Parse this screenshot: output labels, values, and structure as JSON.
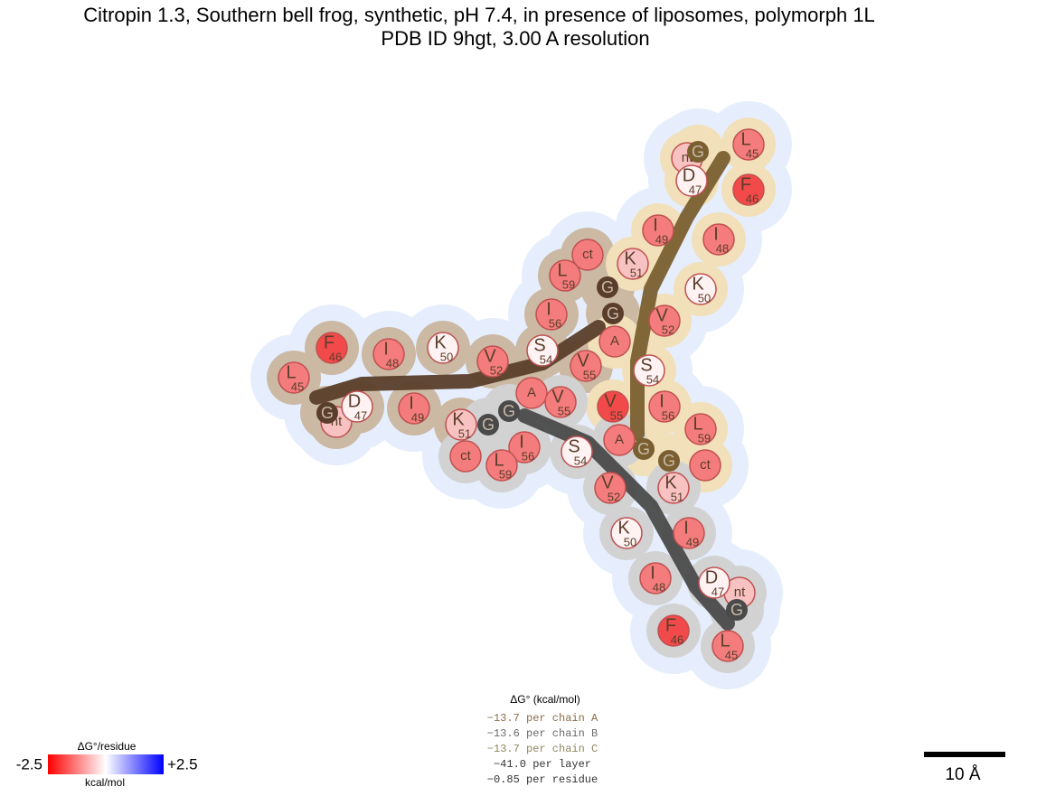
{
  "header": {
    "title": "Citropin 1.3, Southern bell frog, synthetic, pH 7.4, in presence of liposomes, polymorph 1L",
    "subtitle": "PDB ID 9hgt, 3.00 A resolution"
  },
  "chains": [
    {
      "residues": [
        {
          "letter": "nt"
        },
        {
          "letter": "G"
        },
        {
          "letter": "L",
          "number": 45
        },
        {
          "letter": "F",
          "number": 46
        },
        {
          "letter": "D",
          "number": 47
        },
        {
          "letter": "I",
          "number": 48
        },
        {
          "letter": "I",
          "number": 49
        },
        {
          "letter": "K",
          "number": 50
        },
        {
          "letter": "K",
          "number": 51
        },
        {
          "letter": "V",
          "number": 52
        },
        {
          "letter": "A"
        },
        {
          "letter": "S",
          "number": 54
        },
        {
          "letter": "V",
          "number": 55
        },
        {
          "letter": "I",
          "number": 56
        },
        {
          "letter": "G"
        },
        {
          "letter": "G"
        },
        {
          "letter": "L",
          "number": 59
        },
        {
          "letter": "ct"
        }
      ]
    },
    {
      "residues": [
        {
          "letter": "nt"
        },
        {
          "letter": "G"
        },
        {
          "letter": "L",
          "number": 45
        },
        {
          "letter": "F",
          "number": 46
        },
        {
          "letter": "D",
          "number": 47
        },
        {
          "letter": "I",
          "number": 48
        },
        {
          "letter": "I",
          "number": 49
        },
        {
          "letter": "K",
          "number": 50
        },
        {
          "letter": "K",
          "number": 51
        },
        {
          "letter": "V",
          "number": 52
        },
        {
          "letter": "A"
        },
        {
          "letter": "S",
          "number": 54
        },
        {
          "letter": "V",
          "number": 55
        },
        {
          "letter": "I",
          "number": 56
        },
        {
          "letter": "G"
        },
        {
          "letter": "G"
        },
        {
          "letter": "L",
          "number": 59
        },
        {
          "letter": "ct"
        }
      ]
    },
    {
      "residues": [
        {
          "letter": "nt"
        },
        {
          "letter": "G"
        },
        {
          "letter": "L",
          "number": 45
        },
        {
          "letter": "F",
          "number": 46
        },
        {
          "letter": "D",
          "number": 47
        },
        {
          "letter": "I",
          "number": 48
        },
        {
          "letter": "I",
          "number": 49
        },
        {
          "letter": "K",
          "number": 50
        },
        {
          "letter": "K",
          "number": 51
        },
        {
          "letter": "V",
          "number": 52
        },
        {
          "letter": "A"
        },
        {
          "letter": "S",
          "number": 54
        },
        {
          "letter": "V",
          "number": 55
        },
        {
          "letter": "I",
          "number": 56
        },
        {
          "letter": "G"
        },
        {
          "letter": "G"
        },
        {
          "letter": "L",
          "number": 59
        },
        {
          "letter": "ct"
        }
      ]
    }
  ],
  "energy": {
    "heading": "ΔG° (kcal/mol)",
    "lines": [
      "−13.7 per chain A",
      "−13.6 per chain B",
      "−13.7 per chain C",
      "−41.0 per layer",
      "−0.85 per residue"
    ]
  },
  "colorbar": {
    "title": "ΔG°/residue",
    "min": -2.5,
    "max": {
      "value": 2.5,
      "label": "+2.5"
    },
    "unit": "kcal/mol"
  },
  "scale_bar": {
    "label": "10 Å"
  }
}
